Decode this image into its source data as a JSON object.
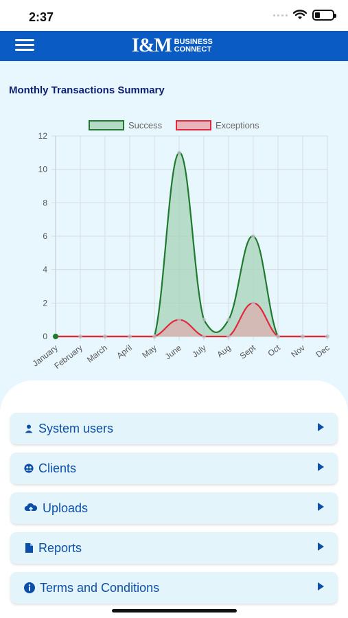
{
  "status_bar": {
    "time": "2:37"
  },
  "header": {
    "brand_mark": "I&M",
    "brand_line1": "BUSINESS",
    "brand_line2": "CONNECT"
  },
  "chart_title": "Monthly Transactions Summary",
  "chart_data": {
    "type": "area",
    "categories": [
      "January",
      "February",
      "March",
      "April",
      "May",
      "June",
      "July",
      "Aug",
      "Sept",
      "Oct",
      "Nov",
      "Dec"
    ],
    "series": [
      {
        "name": "Success",
        "values": [
          0,
          0,
          0,
          0,
          0,
          11,
          1,
          1,
          6,
          0,
          0,
          0
        ],
        "color": "#1f7a2e",
        "fill": "#a7d3b7"
      },
      {
        "name": "Exceptions",
        "values": [
          0,
          0,
          0,
          0,
          0,
          1,
          0,
          0,
          2,
          0,
          0,
          0
        ],
        "color": "#e0283c",
        "fill": "#e7a3a8"
      }
    ],
    "ylim": [
      0,
      12
    ],
    "yticks": [
      0,
      2,
      4,
      6,
      8,
      10,
      12
    ],
    "grid": true,
    "legend": "top"
  },
  "menu": [
    {
      "label": "System users",
      "icon": "user-icon"
    },
    {
      "label": "Clients",
      "icon": "clients-icon"
    },
    {
      "label": "Uploads",
      "icon": "cloud-upload-icon"
    },
    {
      "label": "Reports",
      "icon": "document-icon"
    },
    {
      "label": "Terms and Conditions",
      "icon": "info-icon"
    }
  ]
}
